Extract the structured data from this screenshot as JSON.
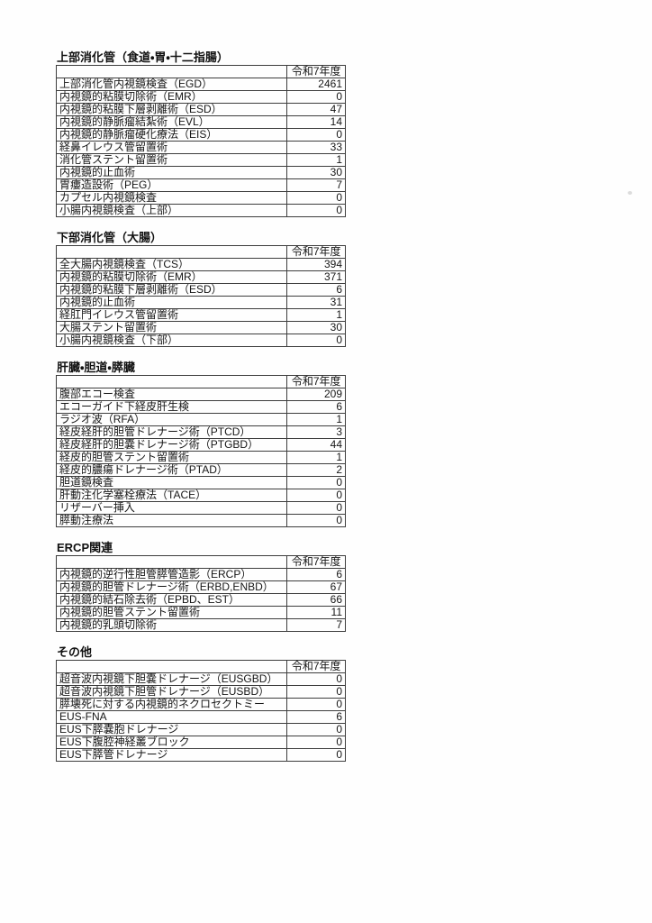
{
  "doc": {
    "year_header": "令和7年度",
    "sections": [
      {
        "title": "上部消化管（食道・胃・十二指腸）",
        "rows": [
          {
            "label": "上部消化管内視鏡検査（EGD）",
            "value": "2461"
          },
          {
            "label": "内視鏡的粘膜切除術（EMR）",
            "value": "0"
          },
          {
            "label": "内視鏡的粘膜下層剥離術（ESD）",
            "value": "47"
          },
          {
            "label": "内視鏡的静脈瘤結紮術（EVL）",
            "value": "14"
          },
          {
            "label": "内視鏡的静脈瘤硬化療法（EIS）",
            "value": "0"
          },
          {
            "label": "経鼻イレウス管留置術",
            "value": "33"
          },
          {
            "label": "消化管ステント留置術",
            "value": "1"
          },
          {
            "label": "内視鏡的止血術",
            "value": "30"
          },
          {
            "label": "胃瘻造設術（PEG）",
            "value": "7"
          },
          {
            "label": "カプセル内視鏡検査",
            "value": "0"
          },
          {
            "label": "小腸内視鏡検査（上部）",
            "value": "0"
          }
        ]
      },
      {
        "title": "下部消化管（大腸）",
        "rows": [
          {
            "label": "全大腸内視鏡検査（TCS）",
            "value": "394"
          },
          {
            "label": "内視鏡的粘膜切除術（EMR）",
            "value": "371"
          },
          {
            "label": "内視鏡的粘膜下層剥離術（ESD）",
            "value": "6"
          },
          {
            "label": "内視鏡的止血術",
            "value": "31"
          },
          {
            "label": "経肛門イレウス管留置術",
            "value": "1"
          },
          {
            "label": "大腸ステント留置術",
            "value": "30"
          },
          {
            "label": "小腸内視鏡検査（下部）",
            "value": "0"
          }
        ]
      },
      {
        "title": "肝臓・胆道・膵臓",
        "rows": [
          {
            "label": "腹部エコー検査",
            "value": "209"
          },
          {
            "label": "エコーガイド下経皮肝生検",
            "value": "6"
          },
          {
            "label": "ラジオ波（RFA）",
            "value": "1"
          },
          {
            "label": "経皮経肝的胆管ドレナージ術（PTCD）",
            "value": "3"
          },
          {
            "label": "経皮経肝的胆嚢ドレナージ術（PTGBD）",
            "value": "44"
          },
          {
            "label": "経皮的胆管ステント留置術",
            "value": "1"
          },
          {
            "label": "経皮的膿瘍ドレナージ術（PTAD）",
            "value": "2"
          },
          {
            "label": "胆道鏡検査",
            "value": "0"
          },
          {
            "label": "肝動注化学塞栓療法（TACE）",
            "value": "0"
          },
          {
            "label": "リザーバー挿入",
            "value": "0"
          },
          {
            "label": "膵動注療法",
            "value": "0"
          }
        ]
      },
      {
        "title": "ERCP関連",
        "rows": [
          {
            "label": "内視鏡的逆行性胆管膵管造影（ERCP）",
            "value": "6"
          },
          {
            "label": "内視鏡的胆管ドレナージ術（ERBD,ENBD）",
            "value": "67"
          },
          {
            "label": "内視鏡的結石除去術（EPBD、EST）",
            "value": "66"
          },
          {
            "label": "内視鏡的胆管ステント留置術",
            "value": "11"
          },
          {
            "label": "内視鏡的乳頭切除術",
            "value": "7"
          }
        ]
      },
      {
        "title": "その他",
        "rows": [
          {
            "label": "超音波内視鏡下胆嚢ドレナージ（EUSGBD）",
            "value": "0"
          },
          {
            "label": "超音波内視鏡下胆管ドレナージ（EUSBD）",
            "value": "0"
          },
          {
            "label": "膵壊死に対する内視鏡的ネクロセクトミー",
            "value": "0"
          },
          {
            "label": "EUS-FNA",
            "value": "6"
          },
          {
            "label": "EUS下膵嚢胞ドレナージ",
            "value": "0"
          },
          {
            "label": "EUS下腹腔神経叢ブロック",
            "value": "0"
          },
          {
            "label": "EUS下膵管ドレナージ",
            "value": "0"
          }
        ]
      }
    ]
  }
}
